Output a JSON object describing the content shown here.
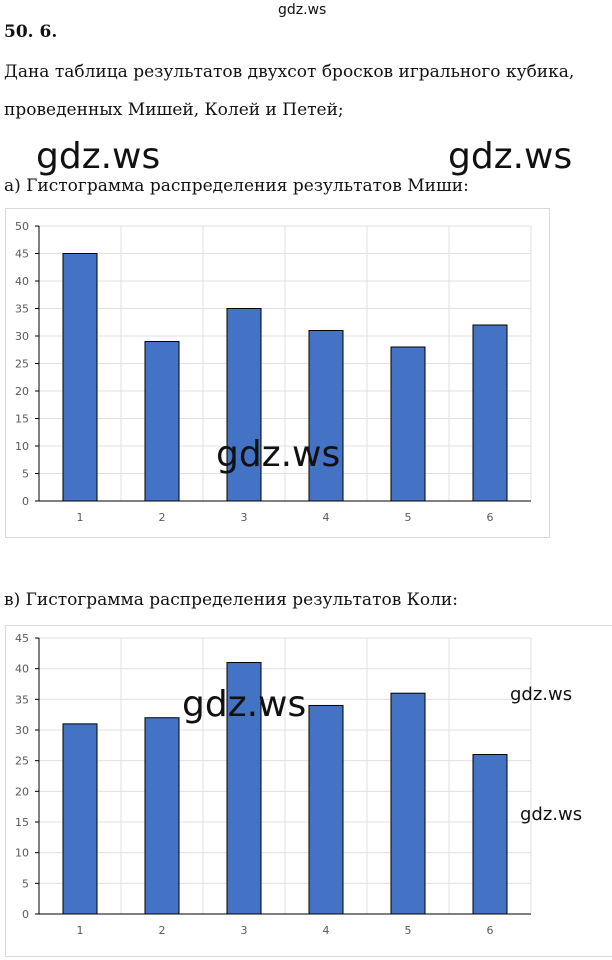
{
  "watermarks": [
    "gdz.ws",
    "gdz.ws",
    "gdz.ws",
    "gdz.ws",
    "gdz.ws",
    "gdz.ws",
    "gdz.ws"
  ],
  "problem_number": "50. 6.",
  "intro_line1": "Дана таблица результатов двухсот бросков игрального кубика,",
  "intro_line2": "проведенных Мишей, Колей и Петей;",
  "part_a": "а) Гистограмма распределения результатов Миши:",
  "part_b": "в) Гистограмма распределения результатов Коли:",
  "bar_color": "#4472c4",
  "chart_data": [
    {
      "type": "bar",
      "title": "",
      "categories": [
        "1",
        "2",
        "3",
        "4",
        "5",
        "6"
      ],
      "values": [
        45,
        29,
        35,
        31,
        28,
        32
      ],
      "ylim": [
        0,
        50
      ],
      "yticks": [
        0,
        5,
        10,
        15,
        20,
        25,
        30,
        35,
        40,
        45,
        50
      ],
      "grid": true
    },
    {
      "type": "bar",
      "title": "",
      "categories": [
        "1",
        "2",
        "3",
        "4",
        "5",
        "6"
      ],
      "values": [
        31,
        32,
        41,
        34,
        36,
        26
      ],
      "ylim": [
        0,
        45
      ],
      "yticks": [
        0,
        5,
        10,
        15,
        20,
        25,
        30,
        35,
        40,
        45
      ],
      "grid": true
    }
  ]
}
